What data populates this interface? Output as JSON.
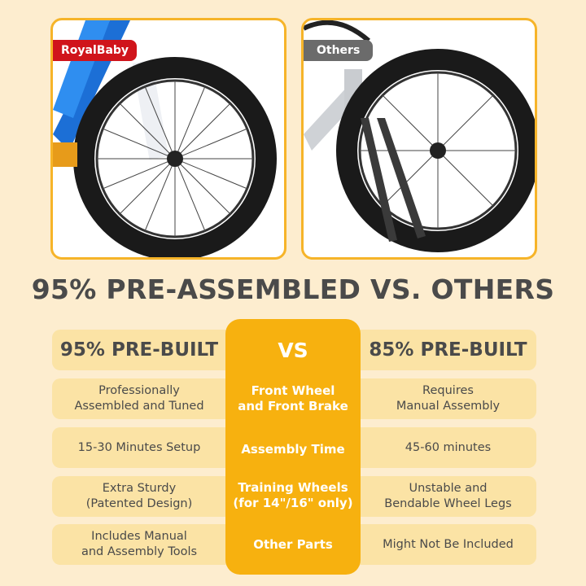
{
  "photos": {
    "left_label": "RoyalBaby",
    "right_label": "Others"
  },
  "title": "95% PRE-ASSEMBLED VS. OTHERS",
  "comparison": {
    "left_header": "95% PRE-BUILT",
    "center_header": "VS",
    "right_header": "85% PRE-BUILT",
    "rows": [
      {
        "left": "Professionally\nAssembled and Tuned",
        "feature": "Front Wheel\nand Front Brake",
        "right": "Requires\nManual Assembly"
      },
      {
        "left": "15-30 Minutes Setup",
        "feature": "Assembly Time",
        "right": "45-60 minutes"
      },
      {
        "left": "Extra Sturdy\n(Patented Design)",
        "feature": "Training Wheels\n(for 14\"/16\" only)",
        "right": "Unstable and\nBendable Wheel Legs"
      },
      {
        "left": "Includes Manual\nand Assembly Tools",
        "feature": "Other Parts",
        "right": "Might Not Be Included"
      }
    ]
  },
  "colors": {
    "accent": "#f7b10f",
    "brand_tag": "#d0141b",
    "others_tag": "#6b6b6b",
    "background": "#fdedcf"
  }
}
